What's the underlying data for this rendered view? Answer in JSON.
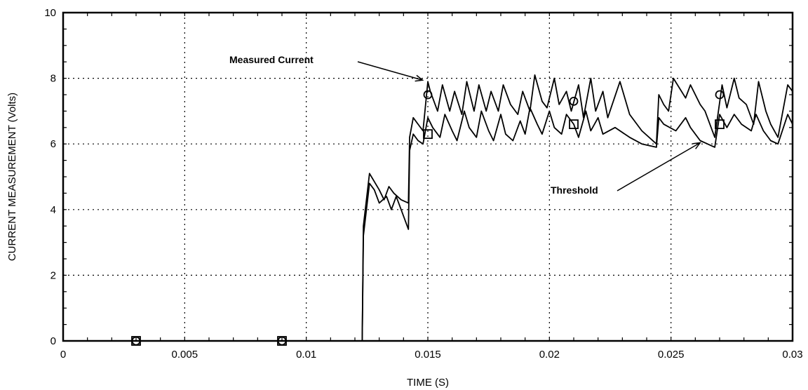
{
  "chart_data": {
    "type": "line",
    "title": "",
    "xlabel": "TIME (S)",
    "ylabel": "CURRENT MEASUREMENT (Volts)",
    "xlim": [
      0,
      0.03
    ],
    "ylim": [
      0,
      10
    ],
    "grid": true,
    "x_ticks": [
      0,
      0.005,
      0.01,
      0.015,
      0.02,
      0.025,
      0.03
    ],
    "x_tick_labels": [
      "0",
      "0.005",
      "0.01",
      "0.015",
      "0.02",
      "0.025",
      "0.03"
    ],
    "y_ticks": [
      0,
      2,
      4,
      6,
      8,
      10
    ],
    "y_tick_labels": [
      "0",
      "2",
      "4",
      "6",
      "8",
      "10"
    ],
    "annotations": {
      "measured": {
        "text": "Measured Current",
        "target_x": 0.0149,
        "target_y": 7.9
      },
      "threshold": {
        "text": "Threshold",
        "target_x": 0.0262,
        "target_y": 6.1
      }
    },
    "series": [
      {
        "marker": "circle",
        "x": [
          0,
          0.0123,
          0.01235,
          0.0126,
          0.013,
          0.0132,
          0.0134,
          0.0136,
          0.0139,
          0.0142,
          0.01425,
          0.0144,
          0.0146,
          0.0148,
          0.015,
          0.0151,
          0.0154,
          0.0156,
          0.0159,
          0.0161,
          0.0164,
          0.0166,
          0.0169,
          0.0171,
          0.0174,
          0.0176,
          0.0179,
          0.0181,
          0.0184,
          0.0187,
          0.0189,
          0.0192,
          0.0194,
          0.0197,
          0.0199,
          0.0202,
          0.0204,
          0.0207,
          0.0209,
          0.0212,
          0.0214,
          0.0217,
          0.0219,
          0.0222,
          0.0224,
          0.0229,
          0.0233,
          0.0238,
          0.0244,
          0.0245,
          0.0247,
          0.0249,
          0.0251,
          0.0256,
          0.0258,
          0.0262,
          0.0264,
          0.0268,
          0.0271,
          0.0273,
          0.0276,
          0.0278,
          0.0281,
          0.0284,
          0.0286,
          0.0289,
          0.0291,
          0.0294,
          0.0298,
          0.03
        ],
        "y": [
          0,
          0,
          3.5,
          5.1,
          4.6,
          4.3,
          4.7,
          4.5,
          4.3,
          4.2,
          6.2,
          6.8,
          6.6,
          6.4,
          7.9,
          7.6,
          7.0,
          7.8,
          7.0,
          7.6,
          6.9,
          7.9,
          7.0,
          7.8,
          7.0,
          7.6,
          7.0,
          7.8,
          7.2,
          6.9,
          7.6,
          7.0,
          8.1,
          7.3,
          7.1,
          8.0,
          7.2,
          7.6,
          7.0,
          7.8,
          6.8,
          8.0,
          7.0,
          7.6,
          6.8,
          7.9,
          6.9,
          6.4,
          6.0,
          7.5,
          7.2,
          7.0,
          8.0,
          7.4,
          7.8,
          7.2,
          7.0,
          6.2,
          7.8,
          7.1,
          8.0,
          7.4,
          7.2,
          6.6,
          7.9,
          7.0,
          6.6,
          6.2,
          7.8,
          7.6
        ],
        "markers_at": [
          [
            0.003,
            0
          ],
          [
            0.009,
            0
          ],
          [
            0.015,
            7.5
          ],
          [
            0.021,
            7.3
          ],
          [
            0.027,
            7.5
          ]
        ]
      },
      {
        "marker": "square",
        "x": [
          0,
          0.0123,
          0.01235,
          0.0126,
          0.0128,
          0.013,
          0.0133,
          0.0135,
          0.0137,
          0.0139,
          0.0142,
          0.01425,
          0.0144,
          0.0146,
          0.0148,
          0.015,
          0.0152,
          0.0155,
          0.0157,
          0.016,
          0.0162,
          0.0165,
          0.0167,
          0.017,
          0.0172,
          0.0175,
          0.0177,
          0.018,
          0.0182,
          0.0185,
          0.0188,
          0.019,
          0.0192,
          0.0195,
          0.0197,
          0.02,
          0.0202,
          0.0205,
          0.0207,
          0.021,
          0.0212,
          0.0215,
          0.0217,
          0.022,
          0.0222,
          0.0227,
          0.0233,
          0.0238,
          0.0244,
          0.0245,
          0.0247,
          0.0252,
          0.0256,
          0.0258,
          0.0262,
          0.0265,
          0.0268,
          0.027,
          0.0273,
          0.0276,
          0.0279,
          0.0283,
          0.0285,
          0.0288,
          0.0291,
          0.0294,
          0.0298,
          0.03
        ],
        "y": [
          0,
          0,
          3.2,
          4.8,
          4.6,
          4.2,
          4.4,
          4.0,
          4.4,
          4.0,
          3.4,
          5.8,
          6.3,
          6.1,
          6.0,
          6.8,
          6.5,
          6.2,
          6.9,
          6.4,
          6.1,
          7.0,
          6.5,
          6.2,
          7.0,
          6.4,
          6.1,
          6.9,
          6.3,
          6.1,
          6.7,
          6.3,
          7.1,
          6.6,
          6.3,
          7.0,
          6.5,
          6.3,
          6.9,
          6.6,
          6.2,
          7.0,
          6.4,
          6.8,
          6.3,
          6.5,
          6.2,
          6.0,
          5.9,
          6.8,
          6.6,
          6.4,
          6.8,
          6.5,
          6.1,
          6.0,
          5.9,
          6.9,
          6.5,
          6.9,
          6.6,
          6.4,
          6.9,
          6.4,
          6.1,
          6.0,
          6.9,
          6.6
        ],
        "markers_at": [
          [
            0.003,
            0
          ],
          [
            0.009,
            0
          ],
          [
            0.015,
            6.3
          ],
          [
            0.021,
            6.6
          ],
          [
            0.027,
            6.6
          ]
        ]
      }
    ]
  }
}
